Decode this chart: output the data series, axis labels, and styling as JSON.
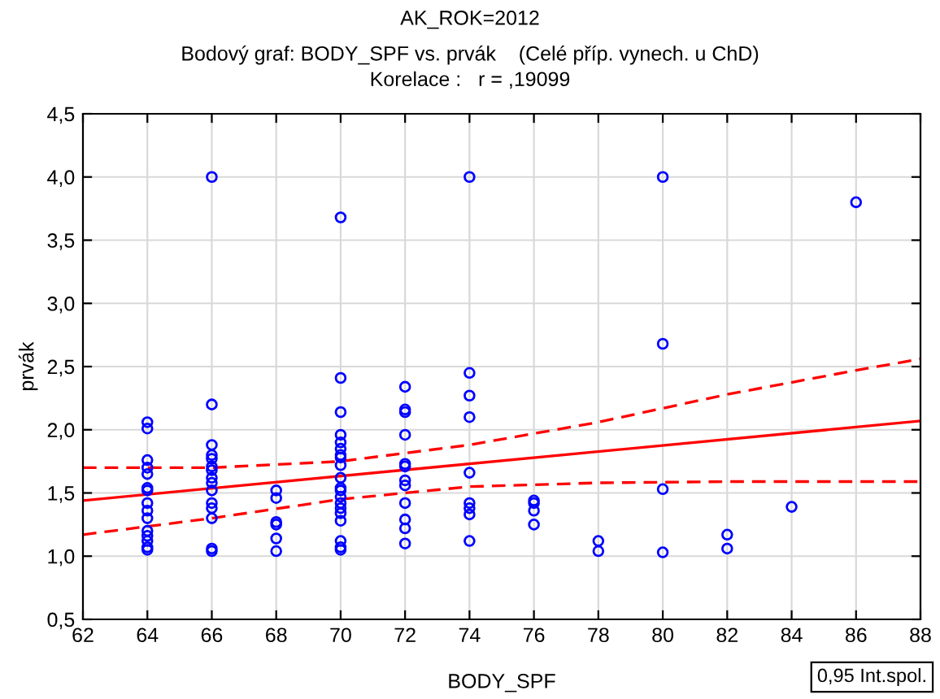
{
  "chart_data": {
    "type": "scatter",
    "title": "AK_ROK=2012",
    "subtitle": "Bodový graf: BODY_SPF vs. prvák    (Celé příp. vynech. u ChD)\nKorelace :   r = ,19099",
    "xlabel": "BODY_SPF",
    "ylabel": "prvák",
    "annotations": [
      "0,95 Int.spol."
    ],
    "grid": true,
    "series": [
      {
        "marker": "circle",
        "color": "#0000ff",
        "x": [
          64,
          64,
          64,
          64,
          64,
          64,
          64,
          64,
          64,
          64,
          64,
          64,
          64,
          64,
          64,
          66,
          66,
          66,
          66,
          66,
          66,
          66,
          66,
          66,
          66,
          66,
          66,
          66,
          66,
          66,
          68,
          68,
          68,
          68,
          68,
          68,
          70,
          70,
          70,
          70,
          70,
          70,
          70,
          70,
          70,
          70,
          70,
          70,
          70,
          70,
          70,
          70,
          70,
          70,
          70,
          70,
          72,
          72,
          72,
          72,
          72,
          72,
          72,
          72,
          72,
          72,
          72,
          72,
          74,
          74,
          74,
          74,
          74,
          74,
          74,
          74,
          74,
          76,
          76,
          76,
          76,
          78,
          78,
          80,
          80,
          80,
          80,
          82,
          82,
          84,
          86
        ],
        "values": [
          2.06,
          2.01,
          1.76,
          1.7,
          1.65,
          1.54,
          1.52,
          1.42,
          1.36,
          1.3,
          1.2,
          1.16,
          1.12,
          1.07,
          1.05,
          4.0,
          2.2,
          1.88,
          1.8,
          1.77,
          1.71,
          1.68,
          1.62,
          1.58,
          1.52,
          1.42,
          1.38,
          1.3,
          1.06,
          1.04,
          1.52,
          1.46,
          1.27,
          1.25,
          1.14,
          1.04,
          3.68,
          2.41,
          2.14,
          1.96,
          1.9,
          1.85,
          1.8,
          1.78,
          1.72,
          1.62,
          1.54,
          1.52,
          1.47,
          1.42,
          1.38,
          1.34,
          1.28,
          1.12,
          1.07,
          1.05,
          2.34,
          2.16,
          2.14,
          1.96,
          1.73,
          1.71,
          1.6,
          1.56,
          1.42,
          1.29,
          1.22,
          1.1,
          4.0,
          2.45,
          2.27,
          2.1,
          1.66,
          1.42,
          1.38,
          1.33,
          1.12,
          1.44,
          1.42,
          1.36,
          1.25,
          1.12,
          1.04,
          4.0,
          2.68,
          1.53,
          1.03,
          1.17,
          1.06,
          1.39,
          3.8
        ]
      },
      {
        "type": "line",
        "color": "#ff0000",
        "line_style": "solid",
        "marker": "none",
        "x": [
          62,
          88
        ],
        "values": [
          1.44,
          2.07
        ]
      },
      {
        "type": "line",
        "color": "#ff0000",
        "line_style": "dashed",
        "marker": "none",
        "x": [
          62,
          66,
          70,
          74,
          78,
          82,
          86,
          88
        ],
        "values": [
          1.7,
          1.7,
          1.75,
          1.88,
          2.06,
          2.28,
          2.47,
          2.56
        ]
      },
      {
        "type": "line",
        "color": "#ff0000",
        "line_style": "dashed",
        "marker": "none",
        "x": [
          62,
          66,
          70,
          74,
          78,
          82,
          86,
          88
        ],
        "values": [
          1.17,
          1.3,
          1.45,
          1.55,
          1.58,
          1.59,
          1.59,
          1.59
        ]
      }
    ],
    "xlim": [
      62,
      88
    ],
    "xticks": [
      62,
      64,
      66,
      68,
      70,
      72,
      74,
      76,
      78,
      80,
      82,
      84,
      86,
      88
    ],
    "ylim": [
      0.5,
      4.5
    ],
    "yticks": [
      {
        "value": 0.5,
        "label": "0,5"
      },
      {
        "value": 1.0,
        "label": "1,0"
      },
      {
        "value": 1.5,
        "label": "1,5"
      },
      {
        "value": 2.0,
        "label": "2,0"
      },
      {
        "value": 2.5,
        "label": "2,5"
      },
      {
        "value": 3.0,
        "label": "3,0"
      },
      {
        "value": 3.5,
        "label": "3,5"
      },
      {
        "value": 4.0,
        "label": "4,0"
      },
      {
        "value": 4.5,
        "label": "4,5"
      }
    ]
  }
}
